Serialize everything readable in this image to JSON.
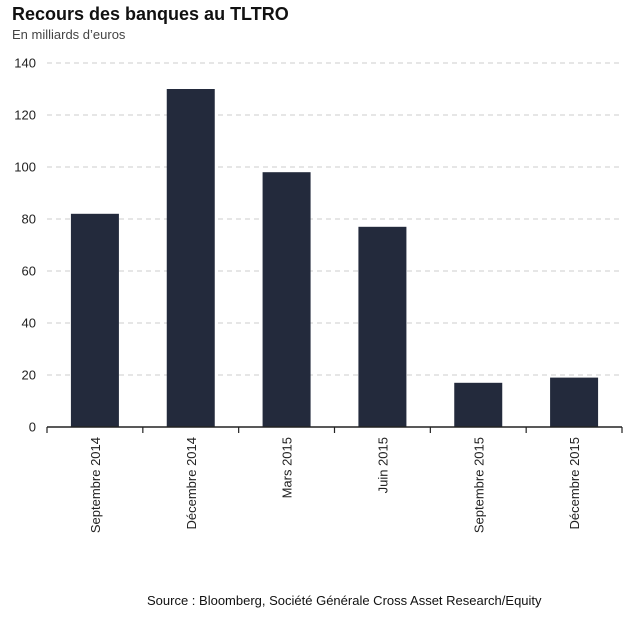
{
  "header": {
    "title": "Recours des banques au TLTRO",
    "subtitle": "En milliards d’euros"
  },
  "footer": {
    "source": "Source : Bloomberg, Société Générale Cross Asset Research/Equity"
  },
  "chart_data": {
    "type": "bar",
    "title": "Recours des banques au TLTRO",
    "subtitle": "En milliards d’euros",
    "xlabel": "",
    "ylabel": "",
    "categories": [
      "Septembre 2014",
      "Décembre 2014",
      "Mars 2015",
      "Juin 2015",
      "Septembre 2015",
      "Décembre 2015"
    ],
    "values": [
      82,
      130,
      98,
      77,
      17,
      19
    ],
    "ylim": [
      0,
      140
    ],
    "yticks": [
      0,
      20,
      40,
      60,
      80,
      100,
      120,
      140
    ],
    "grid": "horizontal-dashed",
    "bar_color": "#232a3c",
    "grid_color": "#cccccc"
  }
}
